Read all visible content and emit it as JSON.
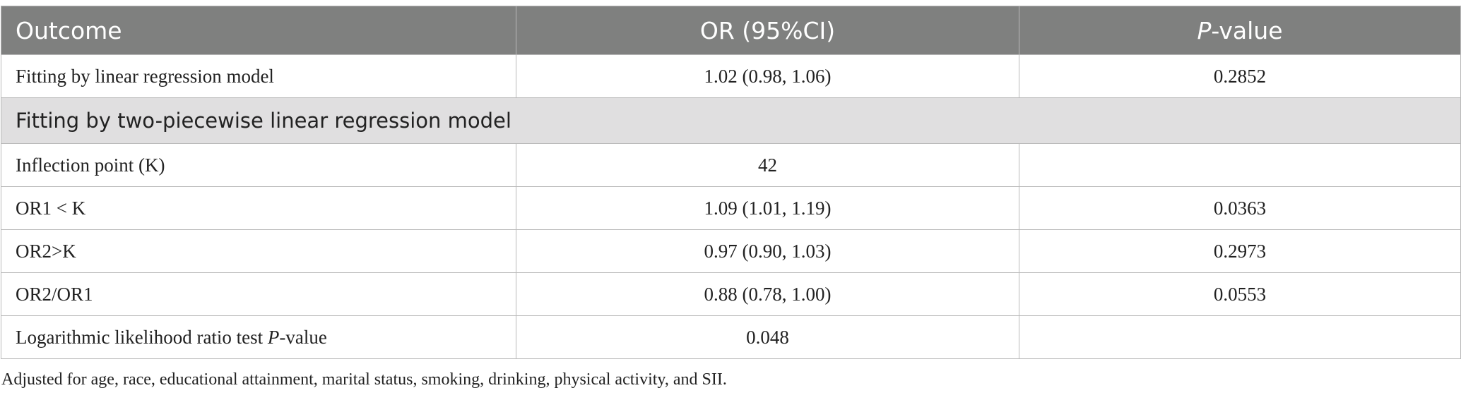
{
  "header": {
    "col1": "Outcome",
    "col2": "OR (95%CI)",
    "col3_italic": "P",
    "col3_rest": "-value"
  },
  "rows": [
    {
      "type": "data",
      "outcome": "Fitting by linear regression model",
      "or": "1.02 (0.98, 1.06)",
      "p": "0.2852"
    },
    {
      "type": "section",
      "label": "Fitting by two-piecewise linear regression model"
    },
    {
      "type": "data",
      "outcome": "Inflection point (K)",
      "or": "42",
      "p": ""
    },
    {
      "type": "data",
      "outcome": "OR1 < K",
      "or": "1.09 (1.01, 1.19)",
      "p": "0.0363"
    },
    {
      "type": "data",
      "outcome": "OR2>K",
      "or": "0.97 (0.90, 1.03)",
      "p": "0.2973"
    },
    {
      "type": "data",
      "outcome": "OR2/OR1",
      "or": "0.88 (0.78, 1.00)",
      "p": "0.0553"
    },
    {
      "type": "data",
      "outcome_prefix": "Logarithmic likelihood ratio test ",
      "outcome_italic": "P",
      "outcome_suffix": "-value",
      "or": "0.048",
      "p": ""
    }
  ],
  "footnote": "Adjusted for age, race, educational attainment, marital status, smoking, drinking, physical activity, and SII."
}
